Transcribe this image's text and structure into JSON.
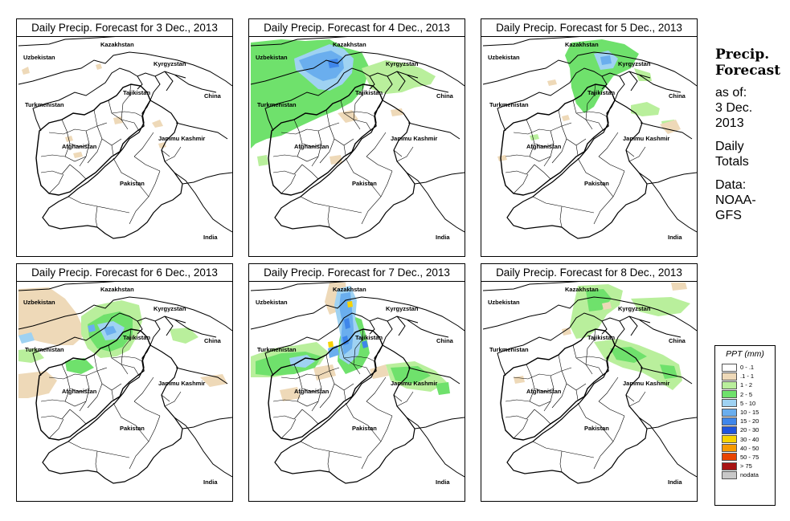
{
  "panels": [
    {
      "title": "Daily Precip. Forecast for  3 Dec., 2013",
      "rain": "p3"
    },
    {
      "title": "Daily Precip. Forecast for  4 Dec., 2013",
      "rain": "p4"
    },
    {
      "title": "Daily Precip. Forecast for  5 Dec., 2013",
      "rain": "p5"
    },
    {
      "title": "Daily Precip. Forecast for  6 Dec., 2013",
      "rain": "p6"
    },
    {
      "title": "Daily Precip. Forecast for  7 Dec., 2013",
      "rain": "p7"
    },
    {
      "title": "Daily Precip. Forecast for  8 Dec., 2013",
      "rain": "p8"
    }
  ],
  "map_labels": {
    "kazakhstan": "Kazakhstan",
    "uzbekistan": "Uzbekistan",
    "kyrgyzstan": "Kyrgyzstan",
    "tajikistan": "Tajikistan",
    "china": "China",
    "turkmenistan": "Turkmenistan",
    "jammu_kashmir": "Jammu Kashmir",
    "afghanistan": "Afghanistan",
    "pakistan": "Pakistan",
    "india": "India"
  },
  "sidebar": {
    "title_line1": "Precip.",
    "title_line2": "Forecast",
    "asof_line1": "as of:",
    "asof_line2": "3 Dec.",
    "asof_line3": "2013",
    "totals_line1": "Daily",
    "totals_line2": "Totals",
    "data_line1": "Data:",
    "data_line2": "NOAA-",
    "data_line3": "GFS"
  },
  "legend": {
    "title": "PPT (mm)",
    "items": [
      {
        "label": "0 - .1",
        "color": "#ffffff"
      },
      {
        "label": ".1 - 1",
        "color": "#eed9b8"
      },
      {
        "label": "1 - 2",
        "color": "#b9ef9c"
      },
      {
        "label": "2 - 5",
        "color": "#6fe16c"
      },
      {
        "label": "5 - 10",
        "color": "#9fd2f2"
      },
      {
        "label": "10 - 15",
        "color": "#6aaeee"
      },
      {
        "label": "15 - 20",
        "color": "#3f86ea"
      },
      {
        "label": "20 - 30",
        "color": "#1f54dc"
      },
      {
        "label": "30 - 40",
        "color": "#f7d200"
      },
      {
        "label": "40 - 50",
        "color": "#f79a00"
      },
      {
        "label": "50 - 75",
        "color": "#e84400"
      },
      {
        "label": "> 75",
        "color": "#a81414"
      },
      {
        "label": "nodata",
        "color": "#c8c8c8"
      }
    ]
  }
}
